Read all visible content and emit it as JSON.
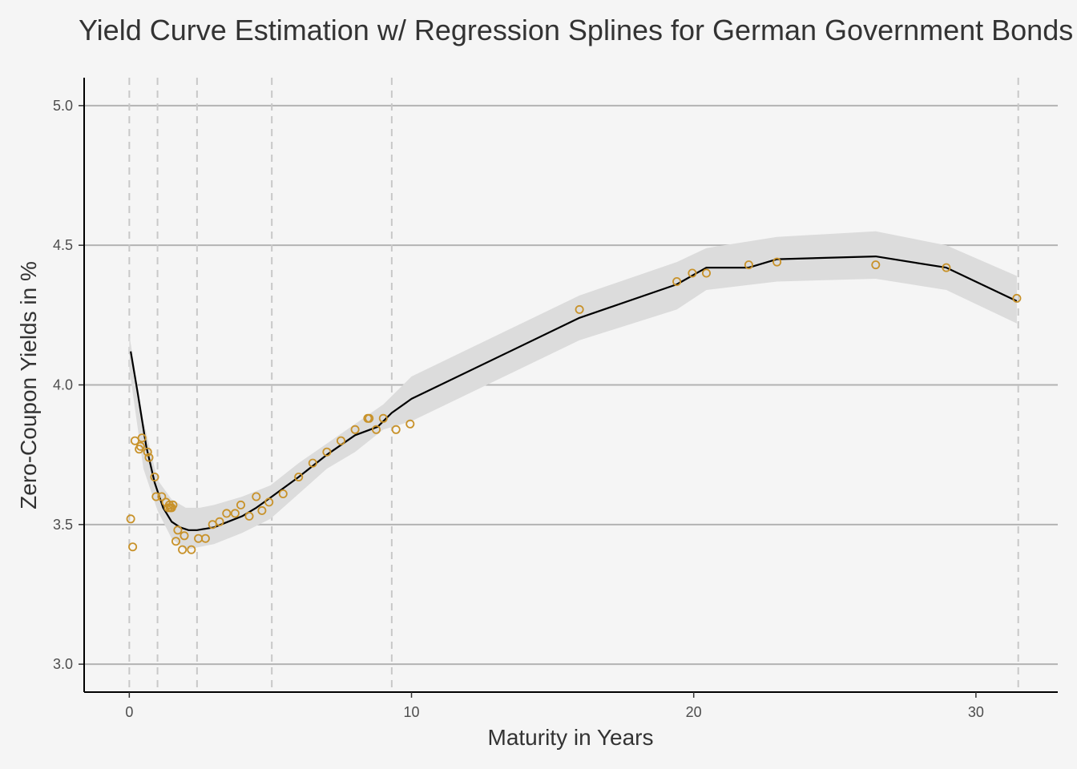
{
  "chart_data": {
    "type": "scatter",
    "title": "Yield Curve Estimation w/ Regression Splines for German Government Bonds",
    "xlabel": "Maturity in Years",
    "ylabel": "Zero-Coupon Yields in %",
    "xlim": [
      -1.6,
      32.9
    ],
    "ylim": [
      2.9,
      5.1
    ],
    "x_ticks": [
      0,
      10,
      20,
      30
    ],
    "x_tick_labels": [
      "0",
      "10",
      "20",
      "30"
    ],
    "y_ticks": [
      3.0,
      3.5,
      4.0,
      4.5,
      5.0
    ],
    "y_tick_labels": [
      "3.0",
      "3.5",
      "4.0",
      "4.5",
      "5.0"
    ],
    "grid": "horizontal major lines",
    "legend": "none",
    "knots": [
      0.0,
      1.0,
      2.4,
      5.05,
      9.3,
      31.5
    ],
    "colors": {
      "points": "#c8922a",
      "fit_line": "#000000",
      "band": "#dcdcdc",
      "grid": "#b3b3b3",
      "knot_lines": "#c8c8c8",
      "background": "#f5f5f5"
    },
    "series": [
      {
        "type": "scatter",
        "points": [
          [
            0.05,
            3.52
          ],
          [
            0.12,
            3.42
          ],
          [
            0.2,
            3.8
          ],
          [
            0.35,
            3.77
          ],
          [
            0.4,
            3.78
          ],
          [
            0.45,
            3.81
          ],
          [
            0.65,
            3.76
          ],
          [
            0.7,
            3.74
          ],
          [
            0.9,
            3.67
          ],
          [
            0.95,
            3.6
          ],
          [
            1.15,
            3.6
          ],
          [
            1.3,
            3.58
          ],
          [
            1.38,
            3.56
          ],
          [
            1.42,
            3.57
          ],
          [
            1.45,
            3.56
          ],
          [
            1.5,
            3.56
          ],
          [
            1.55,
            3.57
          ],
          [
            1.65,
            3.44
          ],
          [
            1.72,
            3.48
          ],
          [
            1.88,
            3.41
          ],
          [
            1.95,
            3.46
          ],
          [
            2.2,
            3.41
          ],
          [
            2.45,
            3.45
          ],
          [
            2.7,
            3.45
          ],
          [
            2.95,
            3.5
          ],
          [
            3.2,
            3.51
          ],
          [
            3.45,
            3.54
          ],
          [
            3.75,
            3.54
          ],
          [
            3.95,
            3.57
          ],
          [
            4.25,
            3.53
          ],
          [
            4.5,
            3.6
          ],
          [
            4.7,
            3.55
          ],
          [
            4.95,
            3.58
          ],
          [
            5.45,
            3.61
          ],
          [
            6.0,
            3.67
          ],
          [
            6.5,
            3.72
          ],
          [
            7.0,
            3.76
          ],
          [
            7.5,
            3.8
          ],
          [
            8.0,
            3.84
          ],
          [
            8.45,
            3.88
          ],
          [
            8.5,
            3.88
          ],
          [
            8.75,
            3.84
          ],
          [
            9.0,
            3.88
          ],
          [
            9.45,
            3.84
          ],
          [
            9.95,
            3.86
          ],
          [
            15.95,
            4.27
          ],
          [
            19.4,
            4.37
          ],
          [
            19.95,
            4.4
          ],
          [
            20.45,
            4.4
          ],
          [
            21.95,
            4.43
          ],
          [
            22.95,
            4.44
          ],
          [
            26.45,
            4.43
          ],
          [
            28.95,
            4.42
          ],
          [
            31.45,
            4.31
          ]
        ]
      },
      {
        "type": "line",
        "name": "spline fit",
        "points": [
          [
            0.05,
            4.12
          ],
          [
            0.3,
            3.97
          ],
          [
            0.6,
            3.78
          ],
          [
            0.9,
            3.65
          ],
          [
            1.2,
            3.56
          ],
          [
            1.5,
            3.51
          ],
          [
            1.8,
            3.49
          ],
          [
            2.1,
            3.48
          ],
          [
            2.4,
            3.48
          ],
          [
            3.0,
            3.49
          ],
          [
            3.5,
            3.51
          ],
          [
            4.0,
            3.53
          ],
          [
            4.5,
            3.56
          ],
          [
            5.05,
            3.6
          ],
          [
            6.0,
            3.67
          ],
          [
            7.0,
            3.75
          ],
          [
            8.0,
            3.82
          ],
          [
            8.8,
            3.85
          ],
          [
            9.3,
            3.9
          ],
          [
            10.0,
            3.95
          ],
          [
            15.95,
            4.24
          ],
          [
            19.4,
            4.36
          ],
          [
            20.45,
            4.42
          ],
          [
            21.95,
            4.42
          ],
          [
            22.95,
            4.45
          ],
          [
            26.45,
            4.46
          ],
          [
            28.95,
            4.42
          ],
          [
            31.45,
            4.3
          ]
        ]
      },
      {
        "type": "band",
        "upper": [
          [
            0.0,
            4.18
          ],
          [
            0.5,
            3.87
          ],
          [
            1.0,
            3.66
          ],
          [
            1.5,
            3.59
          ],
          [
            2.0,
            3.56
          ],
          [
            2.5,
            3.56
          ],
          [
            3.0,
            3.57
          ],
          [
            4.0,
            3.6
          ],
          [
            5.0,
            3.64
          ],
          [
            6.0,
            3.72
          ],
          [
            7.0,
            3.79
          ],
          [
            8.0,
            3.86
          ],
          [
            9.0,
            3.93
          ],
          [
            10.0,
            4.03
          ],
          [
            15.95,
            4.32
          ],
          [
            19.4,
            4.44
          ],
          [
            20.45,
            4.49
          ],
          [
            22.95,
            4.53
          ],
          [
            26.45,
            4.55
          ],
          [
            28.95,
            4.5
          ],
          [
            31.45,
            4.39
          ]
        ],
        "lower": [
          [
            0.0,
            4.06
          ],
          [
            0.5,
            3.7
          ],
          [
            1.0,
            3.55
          ],
          [
            1.5,
            3.45
          ],
          [
            2.0,
            3.41
          ],
          [
            2.5,
            3.42
          ],
          [
            3.0,
            3.43
          ],
          [
            4.0,
            3.47
          ],
          [
            5.0,
            3.52
          ],
          [
            6.0,
            3.61
          ],
          [
            7.0,
            3.7
          ],
          [
            8.0,
            3.76
          ],
          [
            9.0,
            3.84
          ],
          [
            10.0,
            3.87
          ],
          [
            15.95,
            4.16
          ],
          [
            19.4,
            4.27
          ],
          [
            20.45,
            4.34
          ],
          [
            22.95,
            4.37
          ],
          [
            26.45,
            4.38
          ],
          [
            28.95,
            4.34
          ],
          [
            31.45,
            4.22
          ]
        ]
      }
    ]
  }
}
